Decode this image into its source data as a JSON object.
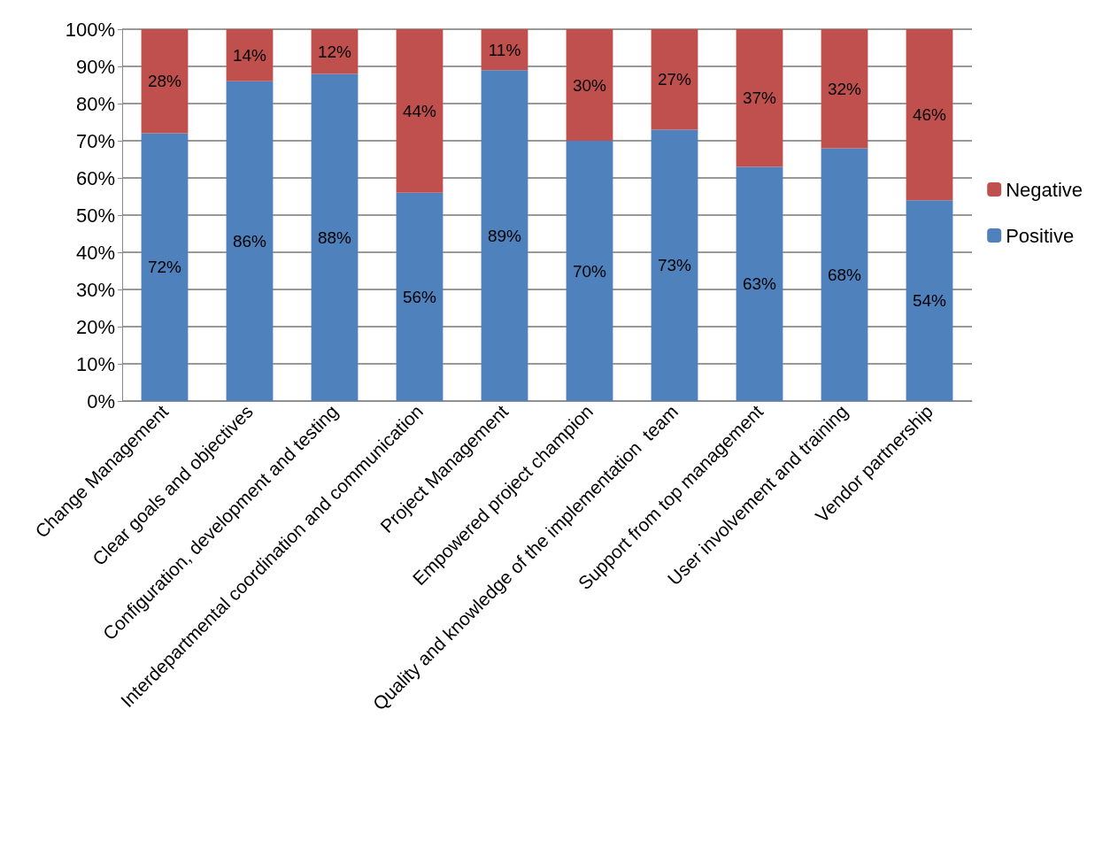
{
  "chart_data": {
    "type": "bar",
    "stacked": true,
    "categories": [
      "Change Management",
      "Clear goals and objectives",
      "Configuration, development and testing",
      "Interdepartmental coordination and communication",
      "Project Management",
      "Empowered project champion",
      "Quality and knowledge of the implementation  team",
      "Support from top management",
      "User involvement and training",
      "Vendor partnership"
    ],
    "series": [
      {
        "name": "Positive",
        "color": "#4f81bd",
        "values": [
          72,
          86,
          88,
          56,
          89,
          70,
          73,
          63,
          68,
          54
        ],
        "value_labels": [
          "72%",
          "86%",
          "88%",
          "56%",
          "89%",
          "70%",
          "73%",
          "63%",
          "68%",
          "54%"
        ]
      },
      {
        "name": "Negative",
        "color": "#c0504d",
        "values": [
          28,
          14,
          12,
          44,
          11,
          30,
          27,
          37,
          32,
          46
        ],
        "value_labels": [
          "28%",
          "14%",
          "12%",
          "44%",
          "11%",
          "30%",
          "27%",
          "37%",
          "32%",
          "46%"
        ]
      }
    ],
    "ylim": [
      0,
      100
    ],
    "yticks": [
      {
        "value": 0,
        "label": "0%"
      },
      {
        "value": 10,
        "label": "10%"
      },
      {
        "value": 20,
        "label": "20%"
      },
      {
        "value": 30,
        "label": "30%"
      },
      {
        "value": 40,
        "label": "40%"
      },
      {
        "value": 50,
        "label": "50%"
      },
      {
        "value": 60,
        "label": "60%"
      },
      {
        "value": 70,
        "label": "70%"
      },
      {
        "value": 80,
        "label": "80%"
      },
      {
        "value": 90,
        "label": "90%"
      },
      {
        "value": 100,
        "label": "100%"
      }
    ],
    "grid": "y",
    "legend": "right"
  }
}
